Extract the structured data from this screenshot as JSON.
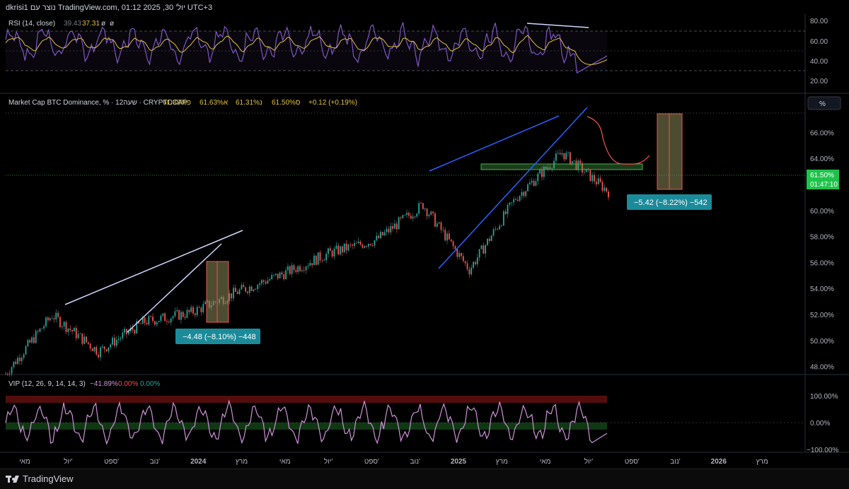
{
  "header": {
    "attribution": "dkrisi1 נוצר עם TradingView.com, יול' 30, 2025 01:12 UTC+3"
  },
  "rsi_panel": {
    "label": "RSI (14, close)",
    "value_dim": "39.43",
    "value_main": "37.31",
    "phi1": "ø",
    "phi2": "ø",
    "ticks": [
      "80.00",
      "60.00",
      "40.00",
      "20.00"
    ]
  },
  "main_panel": {
    "title": "Market Cap BTC Dominance, % · 12שעה · CRYPTOCAP",
    "ohlc": {
      "o": "פ61.38%",
      "h": "א61.63%",
      "l": "נ61.31%",
      "c": "ס61.50%",
      "chg": "+0.12 (+0.19%)"
    },
    "pct_button": "%",
    "price_label": "61.50%",
    "countdown": "01:47:10",
    "y_ticks": [
      "66.00%",
      "64.00%",
      "62.00%",
      "60.00%",
      "58.00%",
      "56.00%",
      "54.00%",
      "52.00%",
      "50.00%",
      "48.00%"
    ],
    "measure_1": "−4.48 (−8.10%) −448",
    "measure_2": "−5.42 (−8.22%) −542"
  },
  "vip_panel": {
    "label": "VIP (12, 26, 9, 14, 14, 3)",
    "v1": "−41.89%",
    "v2": "0.00%",
    "v3": "0.00%",
    "ticks": [
      "100.00%",
      "0.00%",
      "−100.00%"
    ]
  },
  "time_axis": {
    "labels": [
      "מאי",
      "יול'",
      "ספט'",
      "נוב'",
      "2024",
      "מרץ",
      "מאי",
      "יול'",
      "ספט'",
      "נוב'",
      "2025",
      "מרץ",
      "מאי",
      "יול'",
      "ספט'",
      "נוב'",
      "2026",
      "מרץ"
    ]
  },
  "footer": {
    "brand": "TradingView"
  },
  "colors": {
    "background": "#000000",
    "rsi_line": "#7e57c2",
    "rsi_ma": "#e2c23b",
    "bull": "#26a69a",
    "bear": "#ef5350",
    "trendline_white": "#cfd8ff",
    "trendline_blue": "#2962ff",
    "green_zone": "#4caf50",
    "vip_line": "#ce93d8",
    "price_tag": "#1ec34a",
    "measure_box": "#1b8b9a"
  },
  "chart_data": {
    "type": "line",
    "title": "Market Cap BTC Dominance, %",
    "xlabel": "",
    "ylabel": "",
    "ylim": [
      47,
      67
    ],
    "x": [
      "2023-05",
      "2023-07",
      "2023-09",
      "2023-11",
      "2024-01",
      "2024-03",
      "2024-05",
      "2024-07",
      "2024-09",
      "2024-11",
      "2025-01",
      "2025-03",
      "2025-05",
      "2025-07"
    ],
    "series": [
      {
        "name": "",
        "values": [
          47.5,
          52.0,
          49.2,
          51.5,
          52.2,
          53.8,
          55.2,
          56.8,
          57.8,
          60.5,
          55.5,
          61.0,
          64.5,
          61.5
        ]
      }
    ],
    "annotations": [
      "−4.48 (−8.10%) −448",
      "−5.42 (−8.22%) −542"
    ]
  }
}
